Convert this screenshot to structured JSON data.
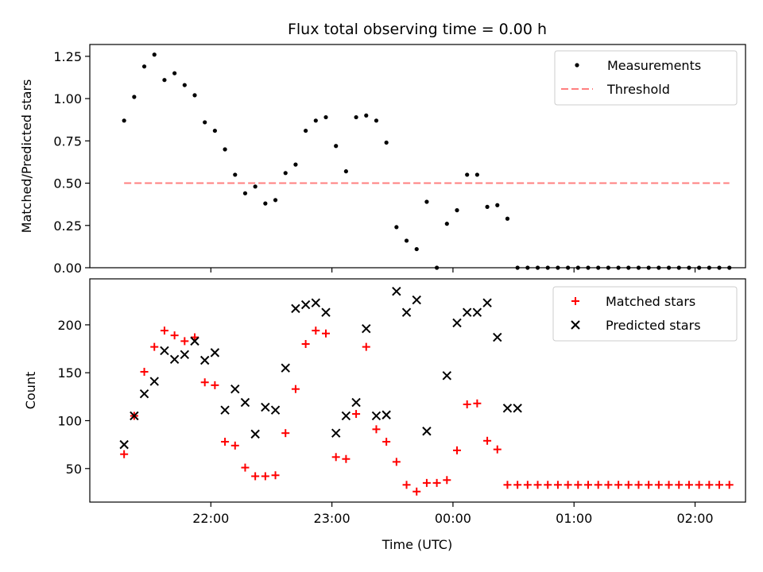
{
  "figure": {
    "title": "Flux total observing time = 0.00 h"
  },
  "chart_data": [
    {
      "type": "scatter",
      "panel": "top",
      "ylabel": "Matched/Predicted stars",
      "xlabel": "",
      "ylim": [
        0,
        1.32
      ],
      "yticks": [
        0.0,
        0.25,
        0.5,
        0.75,
        1.0,
        1.25
      ],
      "ytick_labels": [
        "0.00",
        "0.25",
        "0.50",
        "0.75",
        "1.00",
        "1.25"
      ],
      "grid": false,
      "legend": "top-right",
      "series": [
        {
          "name": "Measurements",
          "kind": "points",
          "color": "#000000",
          "x": [
            "21:17",
            "21:22",
            "21:27",
            "21:32",
            "21:37",
            "21:42",
            "21:47",
            "21:52",
            "21:57",
            "22:02",
            "22:07",
            "22:12",
            "22:17",
            "22:22",
            "22:27",
            "22:32",
            "22:37",
            "22:42",
            "22:47",
            "22:52",
            "22:57",
            "23:02",
            "23:07",
            "23:12",
            "23:17",
            "23:22",
            "23:27",
            "23:32",
            "23:37",
            "23:42",
            "23:47",
            "23:52",
            "23:57",
            "00:02",
            "00:07",
            "00:12",
            "00:17",
            "00:22",
            "00:27",
            "00:32",
            "00:37",
            "00:42",
            "00:47",
            "00:52",
            "00:57",
            "01:02",
            "01:07",
            "01:12",
            "01:17",
            "01:22",
            "01:27",
            "01:32",
            "01:37",
            "01:42",
            "01:47",
            "01:52",
            "01:57",
            "02:02",
            "02:07",
            "02:12",
            "02:17"
          ],
          "values": [
            0.87,
            1.01,
            1.19,
            1.26,
            1.11,
            1.15,
            1.08,
            1.02,
            0.86,
            0.81,
            0.7,
            0.55,
            0.44,
            0.48,
            0.38,
            0.4,
            0.56,
            0.61,
            0.81,
            0.87,
            0.89,
            0.72,
            0.57,
            0.89,
            0.9,
            0.87,
            0.74,
            0.24,
            0.16,
            0.11,
            0.39,
            0.0,
            0.26,
            0.34,
            0.55,
            0.55,
            0.36,
            0.37,
            0.29,
            0.0,
            0.0,
            0.0,
            0.0,
            0.0,
            0.0,
            0.0,
            0.0,
            0.0,
            0.0,
            0.0,
            0.0,
            0.0,
            0.0,
            0.0,
            0.0,
            0.0,
            0.0,
            0.0,
            0.0,
            0.0,
            0.0
          ]
        },
        {
          "name": "Threshold",
          "kind": "dashed-line",
          "color": "#ff7f7f",
          "x": [
            "21:17",
            "02:17"
          ],
          "values": [
            0.5,
            0.5
          ]
        }
      ]
    },
    {
      "type": "scatter",
      "panel": "bottom",
      "ylabel": "Count",
      "xlabel": "Time (UTC)",
      "ylim": [
        15,
        248
      ],
      "yticks": [
        50,
        100,
        150,
        200
      ],
      "ytick_labels": [
        "50",
        "100",
        "150",
        "200"
      ],
      "x_domain": [
        "21:00",
        "02:25"
      ],
      "xticks": [
        "22:00",
        "23:00",
        "00:00",
        "01:00",
        "02:00"
      ],
      "grid": false,
      "legend": "top-right",
      "series": [
        {
          "name": "Matched stars",
          "marker": "plus",
          "color": "#ff0000",
          "x": [
            "21:17",
            "21:22",
            "21:27",
            "21:32",
            "21:37",
            "21:42",
            "21:47",
            "21:52",
            "21:57",
            "22:02",
            "22:07",
            "22:12",
            "22:17",
            "22:22",
            "22:27",
            "22:32",
            "22:37",
            "22:42",
            "22:47",
            "22:52",
            "22:57",
            "23:02",
            "23:07",
            "23:12",
            "23:17",
            "23:22",
            "23:27",
            "23:32",
            "23:37",
            "23:42",
            "23:47",
            "23:52",
            "23:57",
            "00:02",
            "00:07",
            "00:12",
            "00:17",
            "00:22",
            "00:27",
            "00:32",
            "00:37",
            "00:42",
            "00:47",
            "00:52",
            "00:57",
            "01:02",
            "01:07",
            "01:12",
            "01:17",
            "01:22",
            "01:27",
            "01:32",
            "01:37",
            "01:42",
            "01:47",
            "01:52",
            "01:57",
            "02:02",
            "02:07",
            "02:12",
            "02:17"
          ],
          "values": [
            65,
            105,
            151,
            177,
            194,
            189,
            183,
            187,
            140,
            137,
            78,
            74,
            51,
            42,
            42,
            43,
            87,
            133,
            180,
            194,
            191,
            62,
            60,
            107,
            177,
            91,
            78,
            57,
            33,
            26,
            35,
            35,
            38,
            69,
            117,
            118,
            79,
            70,
            33,
            33,
            33,
            33,
            33,
            33,
            33,
            33,
            33,
            33,
            33,
            33,
            33,
            33,
            33,
            33,
            33,
            33,
            33,
            33,
            33,
            33,
            33
          ]
        },
        {
          "name": "Predicted stars",
          "marker": "x",
          "color": "#000000",
          "x": [
            "21:17",
            "21:22",
            "21:27",
            "21:32",
            "21:37",
            "21:42",
            "21:47",
            "21:52",
            "21:57",
            "22:02",
            "22:07",
            "22:12",
            "22:17",
            "22:22",
            "22:27",
            "22:32",
            "22:37",
            "22:42",
            "22:47",
            "22:52",
            "22:57",
            "23:02",
            "23:07",
            "23:12",
            "23:17",
            "23:22",
            "23:27",
            "23:32",
            "23:37",
            "23:42",
            "23:47",
            "23:57",
            "00:02",
            "00:07",
            "00:12",
            "00:17",
            "00:22",
            "00:27",
            "00:32"
          ],
          "values": [
            75,
            105,
            128,
            141,
            173,
            164,
            169,
            183,
            163,
            171,
            111,
            133,
            119,
            86,
            114,
            111,
            155,
            217,
            221,
            223,
            213,
            87,
            105,
            119,
            196,
            105,
            106,
            235,
            213,
            226,
            89,
            147,
            202,
            213,
            213,
            223,
            187,
            113,
            113
          ]
        }
      ]
    }
  ]
}
